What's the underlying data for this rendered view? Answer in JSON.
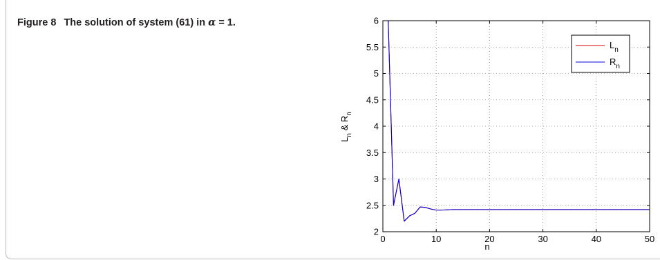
{
  "caption": {
    "label": "Figure 8",
    "text_pre": "The solution of system (61) in",
    "symbol": "α",
    "text_post": "= 1."
  },
  "chart_data": {
    "type": "line",
    "xlabel": "n",
    "ylabel_parts": {
      "a": "L",
      "a_sub": "n",
      "mid": " & ",
      "b": "R",
      "b_sub": "n"
    },
    "xlim": [
      0,
      50
    ],
    "ylim": [
      2,
      6
    ],
    "xticks": [
      0,
      10,
      20,
      30,
      40,
      50
    ],
    "yticks": [
      2,
      2.5,
      3,
      3.5,
      4,
      4.5,
      5,
      5.5,
      6
    ],
    "grid": true,
    "legend_position": "top-right",
    "series": [
      {
        "name": "L",
        "name_sub": "n",
        "color": "#e00000",
        "x": [
          1,
          2,
          3,
          4,
          5,
          6,
          7,
          8,
          9,
          10,
          11,
          12,
          13,
          14,
          15,
          16,
          17,
          18,
          19,
          20,
          21,
          22,
          23,
          24,
          25,
          26,
          27,
          28,
          29,
          30,
          31,
          32,
          33,
          34,
          35,
          36,
          37,
          38,
          39,
          40,
          41,
          42,
          43,
          44,
          45,
          46,
          47,
          48,
          49,
          50
        ],
        "y": [
          6,
          2.5,
          3,
          2.2,
          2.3,
          2.35,
          2.47,
          2.46,
          2.43,
          2.41,
          2.41,
          2.415,
          2.42,
          2.42,
          2.42,
          2.42,
          2.42,
          2.42,
          2.42,
          2.42,
          2.42,
          2.42,
          2.42,
          2.42,
          2.42,
          2.42,
          2.42,
          2.42,
          2.42,
          2.42,
          2.42,
          2.42,
          2.42,
          2.42,
          2.42,
          2.42,
          2.42,
          2.42,
          2.42,
          2.42,
          2.42,
          2.42,
          2.42,
          2.42,
          2.42,
          2.42,
          2.42,
          2.42,
          2.42,
          2.42
        ]
      },
      {
        "name": "R",
        "name_sub": "n",
        "color": "#0000e0",
        "x": [
          1,
          2,
          3,
          4,
          5,
          6,
          7,
          8,
          9,
          10,
          11,
          12,
          13,
          14,
          15,
          16,
          17,
          18,
          19,
          20,
          21,
          22,
          23,
          24,
          25,
          26,
          27,
          28,
          29,
          30,
          31,
          32,
          33,
          34,
          35,
          36,
          37,
          38,
          39,
          40,
          41,
          42,
          43,
          44,
          45,
          46,
          47,
          48,
          49,
          50
        ],
        "y": [
          6,
          2.5,
          3,
          2.2,
          2.3,
          2.35,
          2.47,
          2.46,
          2.43,
          2.41,
          2.41,
          2.415,
          2.42,
          2.42,
          2.42,
          2.42,
          2.42,
          2.42,
          2.42,
          2.42,
          2.42,
          2.42,
          2.42,
          2.42,
          2.42,
          2.42,
          2.42,
          2.42,
          2.42,
          2.42,
          2.42,
          2.42,
          2.42,
          2.42,
          2.42,
          2.42,
          2.42,
          2.42,
          2.42,
          2.42,
          2.42,
          2.42,
          2.42,
          2.42,
          2.42,
          2.42,
          2.42,
          2.42,
          2.42,
          2.42
        ]
      }
    ]
  }
}
